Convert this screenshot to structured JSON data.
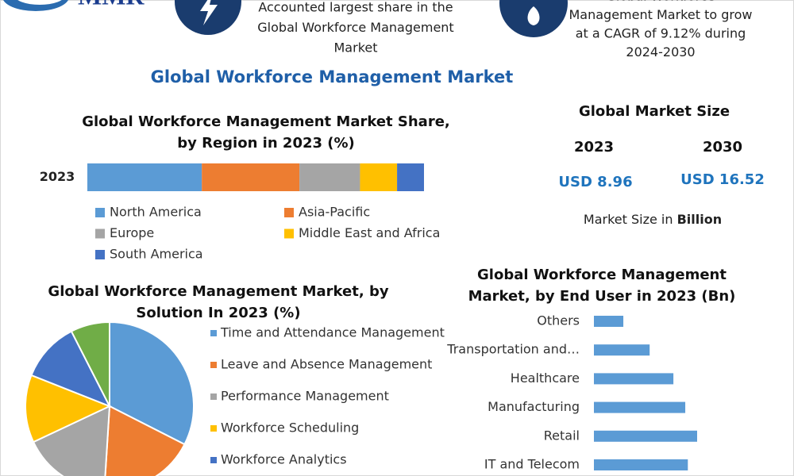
{
  "header": {
    "logo": "MMR",
    "left_lines": [
      "Accounted largest share in the",
      "Global Workforce Management",
      "Market"
    ],
    "right_lines": [
      "Global Workforce",
      "Management Market to grow",
      "at a CAGR of 9.12% during",
      "2024-2030"
    ]
  },
  "title": "Global Workforce Management Market",
  "market_size": {
    "title": "Global Market Size",
    "years": [
      "2023",
      "2030"
    ],
    "values": [
      "USD 8.96",
      "USD 16.52"
    ],
    "unit_text": "Market Size in",
    "unit": "Billion"
  },
  "chart_data": [
    {
      "type": "bar",
      "stacked": true,
      "orientation": "horizontal",
      "title": [
        "Global Workforce Management Market Share,",
        "by Region in 2023 (%)"
      ],
      "categories": [
        "2023"
      ],
      "xlim": [
        0,
        100
      ],
      "series": [
        {
          "name": "North America",
          "color": "#5b9bd5",
          "values": [
            34
          ]
        },
        {
          "name": "Asia-Pacific",
          "color": "#ed7d31",
          "values": [
            29
          ]
        },
        {
          "name": "Europe",
          "color": "#a5a5a5",
          "values": [
            18
          ]
        },
        {
          "name": "Middle East and Africa",
          "color": "#ffc000",
          "values": [
            11
          ]
        },
        {
          "name": "South America",
          "color": "#4472c4",
          "values": [
            8
          ]
        }
      ]
    },
    {
      "type": "pie",
      "title": [
        "Global Workforce Management Market, by",
        "Solution In 2023 (%)"
      ],
      "categories": [
        "Time and Attendance Management",
        "Leave and Absence Management",
        "Performance Management",
        "Workforce Scheduling",
        "Workforce Analytics",
        null
      ],
      "values": [
        32.5,
        18.5,
        17,
        13,
        11.5,
        7.5
      ],
      "colors": [
        "#5b9bd5",
        "#ed7d31",
        "#a5a5a5",
        "#ffc000",
        "#4472c4",
        "#70ad47"
      ]
    },
    {
      "type": "bar",
      "orientation": "horizontal",
      "title": [
        "Global Workforce Management",
        "Market, by End User in 2023 (Bn)"
      ],
      "categories": [
        "Others",
        "Transportation and…",
        "Healthcare",
        "Manufacturing",
        "Retail",
        "IT and Telecom"
      ],
      "values": [
        0.57,
        1.08,
        1.54,
        1.77,
        2.0,
        1.82
      ],
      "xlim": [
        0,
        3
      ],
      "color": "#5b9bd5"
    }
  ]
}
